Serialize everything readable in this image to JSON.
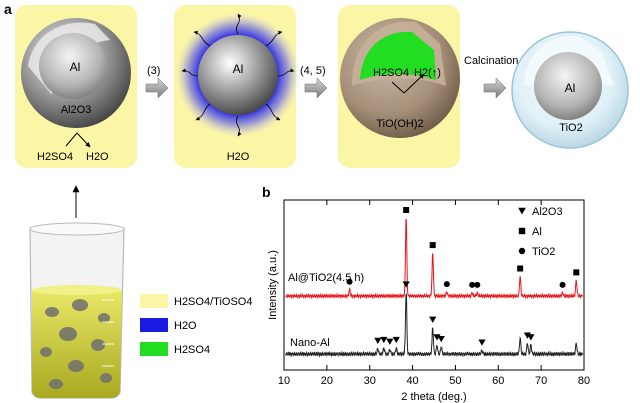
{
  "panel_a": {
    "label": "a",
    "step1": {
      "core": "Al",
      "shell": "Al2O3",
      "reactant": "H2SO4",
      "product": "H2O"
    },
    "step2_label": "(3)",
    "step2": {
      "core": "Al",
      "product": "H2O"
    },
    "step3_label": "(4, 5)",
    "step3": {
      "reactant": "H2SO4",
      "gas": "H2(↑)",
      "shell": "TiO(OH)2"
    },
    "step4_label": "Calcination",
    "step4": {
      "core": "Al",
      "shell": "TiO2"
    },
    "legend": [
      {
        "label": "H2SO4/TiOSO4",
        "color": "#fbf5a6"
      },
      {
        "label": "H2O",
        "color": "#1a1ae6"
      },
      {
        "label": "H2SO4",
        "color": "#22dd22"
      }
    ]
  },
  "panel_b": {
    "label": "b",
    "chart_data": {
      "type": "line",
      "xlabel": "2 theta (deg.)",
      "ylabel": "Intensity (a.u.)",
      "xlim": [
        10,
        80
      ],
      "xticks": [
        10,
        20,
        30,
        40,
        50,
        60,
        70,
        80
      ],
      "grid": false,
      "legend_position": "top-right",
      "legend": [
        {
          "marker": "triangle-down",
          "label": "Al2O3"
        },
        {
          "marker": "square",
          "label": "Al"
        },
        {
          "marker": "circle",
          "label": "TiO2"
        }
      ],
      "series": [
        {
          "name": "Al@TiO2(4.5 h)",
          "color": "#e8141a",
          "peaks": [
            {
              "x": 25.3,
              "h": 0.08,
              "marker": "circle"
            },
            {
              "x": 38.5,
              "h": 1.0,
              "marker": "square"
            },
            {
              "x": 44.7,
              "h": 0.55,
              "marker": "square"
            },
            {
              "x": 48.0,
              "h": 0.05,
              "marker": "circle"
            },
            {
              "x": 53.9,
              "h": 0.04,
              "marker": "circle"
            },
            {
              "x": 55.1,
              "h": 0.04,
              "marker": "circle"
            },
            {
              "x": 65.1,
              "h": 0.25,
              "marker": "square"
            },
            {
              "x": 75.0,
              "h": 0.04,
              "marker": "circle"
            },
            {
              "x": 78.2,
              "h": 0.2,
              "marker": "square"
            }
          ]
        },
        {
          "name": "Nano-Al",
          "color": "#222222",
          "peaks": [
            {
              "x": 31.9,
              "h": 0.06,
              "marker": "triangle-down"
            },
            {
              "x": 33.3,
              "h": 0.07,
              "marker": "triangle-down"
            },
            {
              "x": 34.7,
              "h": 0.05,
              "marker": "triangle-down"
            },
            {
              "x": 36.2,
              "h": 0.07,
              "marker": "triangle-down"
            },
            {
              "x": 38.5,
              "h": 0.7,
              "marker": "triangle-down"
            },
            {
              "x": 44.7,
              "h": 0.3,
              "marker": "triangle-down"
            },
            {
              "x": 45.7,
              "h": 0.1,
              "marker": "triangle-down"
            },
            {
              "x": 46.7,
              "h": 0.08,
              "marker": "triangle-down"
            },
            {
              "x": 56.2,
              "h": 0.04,
              "marker": "triangle-down"
            },
            {
              "x": 65.1,
              "h": 0.18,
              "marker": "none"
            },
            {
              "x": 66.8,
              "h": 0.12,
              "marker": "triangle-down"
            },
            {
              "x": 67.6,
              "h": 0.1,
              "marker": "triangle-down"
            },
            {
              "x": 78.2,
              "h": 0.12,
              "marker": "none"
            }
          ]
        }
      ]
    }
  }
}
